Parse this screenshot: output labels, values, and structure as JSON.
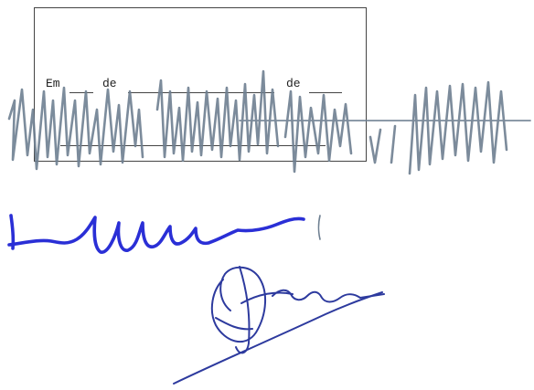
{
  "form": {
    "prefix": "Em",
    "de1": "de",
    "de2": "de"
  },
  "colors": {
    "pencil": "#6e7f91",
    "ink_blue": "#2a2fd6",
    "ink_navy": "#2d3a9e",
    "box": "#444444"
  },
  "signatures": [
    {
      "kind": "pencil-scribble",
      "ink": "grey"
    },
    {
      "kind": "blue-ink-signature"
    },
    {
      "kind": "navy-ink-initials"
    }
  ]
}
